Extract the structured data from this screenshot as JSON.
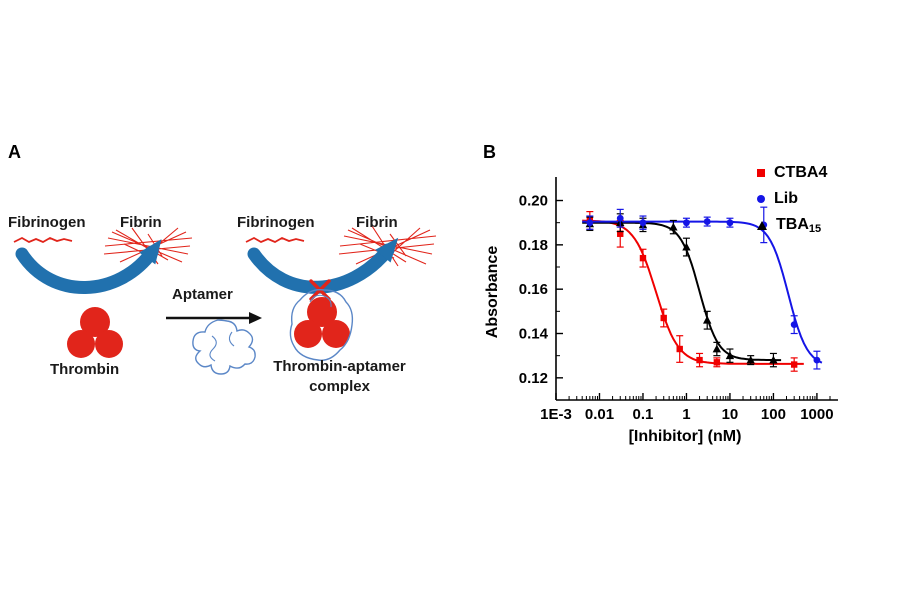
{
  "figure_labels": {
    "panel_a": "A",
    "panel_b": "B"
  },
  "panel_a": {
    "fibrinogen_left": "Fibrinogen",
    "fibrin_left": "Fibrin",
    "aptamer_label": "Aptamer",
    "thrombin_label": "Thrombin",
    "fibrinogen_right": "Fibrinogen",
    "fibrin_right": "Fibrin",
    "complex_line1": "Thrombin-aptamer",
    "complex_line2": "complex"
  },
  "colors": {
    "scheme_red": "#e1251b",
    "arrow_blue": "#2171ae",
    "aptamer_blue": "#5b87c7",
    "axis_black": "#000000"
  },
  "chart_data": {
    "type": "scatter",
    "title": "",
    "x_scale": "log",
    "xlabel": "[Inhibitor] (nM)",
    "ylabel": "Absorbance",
    "xlim": [
      0.001,
      2000
    ],
    "ylim": [
      0.11,
      0.207
    ],
    "grid": false,
    "legend_position": "top-right",
    "x_ticks": [
      {
        "label": "1E-3",
        "value": 0.001
      },
      {
        "label": "0.01",
        "value": 0.01
      },
      {
        "label": "0.1",
        "value": 0.1
      },
      {
        "label": "1",
        "value": 1
      },
      {
        "label": "10",
        "value": 10
      },
      {
        "label": "100",
        "value": 100
      },
      {
        "label": "1000",
        "value": 1000
      }
    ],
    "y_ticks": [
      {
        "label": "0.20",
        "value": 0.2
      },
      {
        "label": "0.18",
        "value": 0.18
      },
      {
        "label": "0.16",
        "value": 0.16
      },
      {
        "label": "0.14",
        "value": 0.14
      },
      {
        "label": "0.12",
        "value": 0.12
      }
    ],
    "legend": [
      {
        "label": "CTBA4",
        "label_sub": "",
        "marker": "square",
        "color": "#f00000"
      },
      {
        "label": "Lib",
        "label_sub": "",
        "marker": "circle",
        "color": "#1515e6"
      },
      {
        "label": "TBA",
        "label_sub": "15",
        "marker": "triangle",
        "color": "#000000"
      }
    ],
    "series": [
      {
        "name": "CTBA4",
        "marker": "square",
        "color": "#f00000",
        "fit": {
          "top": 0.191,
          "bottom": 0.1263,
          "ic50": 0.2,
          "hill": 1.7,
          "xmin": 0.004,
          "xmax": 500
        },
        "points": [
          [
            0.006,
            0.191,
            0.004
          ],
          [
            0.03,
            0.185,
            0.006
          ],
          [
            0.1,
            0.174,
            0.004
          ],
          [
            0.3,
            0.147,
            0.004
          ],
          [
            0.7,
            0.133,
            0.006
          ],
          [
            2,
            0.128,
            0.003
          ],
          [
            5,
            0.127,
            0.002
          ],
          [
            300,
            0.126,
            0.003
          ]
        ]
      },
      {
        "name": "TBA15",
        "marker": "triangle",
        "color": "#000000",
        "fit": {
          "top": 0.19,
          "bottom": 0.128,
          "ic50": 2.0,
          "hill": 2.0,
          "xmin": 0.004,
          "xmax": 150
        },
        "points": [
          [
            0.006,
            0.1895,
            0.003
          ],
          [
            0.03,
            0.19,
            0.004
          ],
          [
            0.1,
            0.189,
            0.003
          ],
          [
            0.5,
            0.188,
            0.003
          ],
          [
            1,
            0.179,
            0.004
          ],
          [
            3,
            0.146,
            0.004
          ],
          [
            5,
            0.133,
            0.003
          ],
          [
            10,
            0.13,
            0.003
          ],
          [
            30,
            0.128,
            0.002
          ],
          [
            100,
            0.128,
            0.003
          ]
        ]
      },
      {
        "name": "Lib",
        "marker": "circle",
        "color": "#1515e6",
        "fit": {
          "top": 0.1905,
          "bottom": 0.125,
          "ic50": 220,
          "hill": 2.0,
          "xmin": 0.004,
          "xmax": 1300
        },
        "points": [
          [
            0.006,
            0.19,
            0.003
          ],
          [
            0.03,
            0.192,
            0.004
          ],
          [
            0.1,
            0.19,
            0.003
          ],
          [
            1,
            0.19,
            0.002
          ],
          [
            3,
            0.1905,
            0.002
          ],
          [
            10,
            0.19,
            0.002
          ],
          [
            60,
            0.189,
            0.008
          ],
          [
            300,
            0.144,
            0.004
          ],
          [
            1000,
            0.128,
            0.004
          ]
        ]
      }
    ]
  }
}
